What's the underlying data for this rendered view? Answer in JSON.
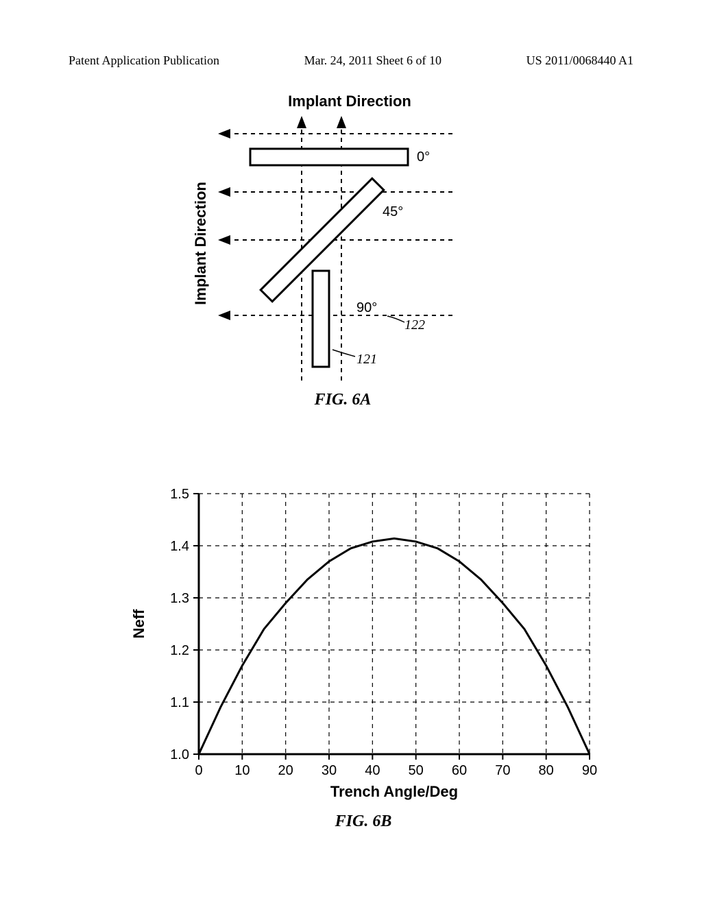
{
  "header": {
    "left": "Patent Application Publication",
    "center": "Mar. 24, 2011  Sheet 6 of 10",
    "right": "US 2011/0068440 A1"
  },
  "fig6a": {
    "caption": "FIG. 6A",
    "title_top": "Implant Direction",
    "title_left": "Implant Direction",
    "angle_labels": [
      "0°",
      "45°",
      "90°"
    ],
    "ref_122": "122",
    "ref_121": "121",
    "colors": {
      "stroke": "#000000",
      "dash": "#000000",
      "bg": "#ffffff"
    },
    "stroke_width": 3,
    "dash_pattern": "6,6"
  },
  "fig6b": {
    "caption": "FIG. 6B",
    "type": "line",
    "xlabel": "Trench Angle/Deg",
    "ylabel": "Neff",
    "xlim": [
      0,
      90
    ],
    "ylim": [
      1.0,
      1.5
    ],
    "xticks": [
      0,
      10,
      20,
      30,
      40,
      50,
      60,
      70,
      80,
      90
    ],
    "yticks": [
      1.0,
      1.1,
      1.2,
      1.3,
      1.4,
      1.5
    ],
    "ytick_labels": [
      "1.0",
      "1.1",
      "1.2",
      "1.3",
      "1.4",
      "1.5"
    ],
    "curve": [
      [
        0,
        1.0
      ],
      [
        5,
        1.09
      ],
      [
        10,
        1.17
      ],
      [
        15,
        1.24
      ],
      [
        20,
        1.29
      ],
      [
        25,
        1.335
      ],
      [
        30,
        1.37
      ],
      [
        35,
        1.395
      ],
      [
        40,
        1.408
      ],
      [
        45,
        1.414
      ],
      [
        50,
        1.408
      ],
      [
        55,
        1.395
      ],
      [
        60,
        1.37
      ],
      [
        65,
        1.335
      ],
      [
        70,
        1.29
      ],
      [
        75,
        1.24
      ],
      [
        80,
        1.17
      ],
      [
        85,
        1.09
      ],
      [
        90,
        1.0
      ]
    ],
    "colors": {
      "axis": "#000000",
      "grid": "#000000",
      "curve": "#000000",
      "bg": "#ffffff"
    },
    "axis_width": 3,
    "grid_width": 1.2,
    "curve_width": 3,
    "grid_dash": "6,6",
    "label_fontsize": 22,
    "tick_fontsize": 20
  }
}
